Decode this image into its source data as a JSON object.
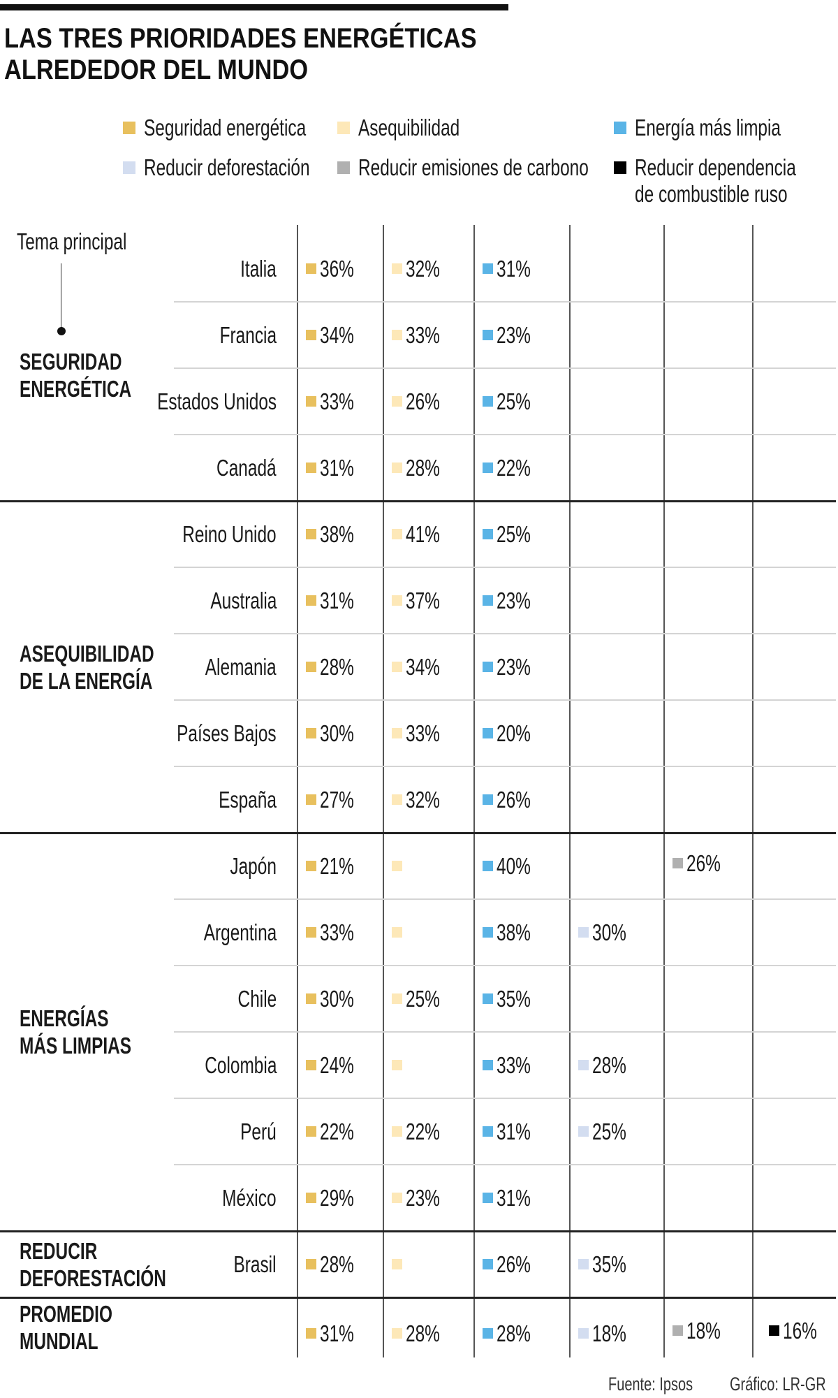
{
  "title": {
    "line1": "LAS TRES PRIORIDADES ENERGÉTICAS",
    "line2": "ALREDEDOR DEL MUNDO"
  },
  "legend": [
    {
      "label": "Seguridad energética",
      "color": "#e8c05e"
    },
    {
      "label": "Asequibilidad",
      "color": "#fde8b8"
    },
    {
      "label": "Energía más limpia",
      "color": "#5ab4e6"
    },
    {
      "label": "Reducir deforestación",
      "color": "#d3ddf0"
    },
    {
      "label": "Reducir emisiones de carbono",
      "color": "#b0b0b0"
    },
    {
      "label": "Reducir dependencia",
      "label2": "de combustible ruso",
      "color": "#000000"
    }
  ],
  "tema_label": "Tema principal",
  "chart_data": {
    "type": "table",
    "columns": [
      "Seguridad energética",
      "Asequibilidad",
      "Energía más limpia",
      "Reducir deforestación",
      "Reducir emisiones de carbono",
      "Reducir dependencia de combustible ruso"
    ],
    "groups": [
      {
        "line1": "SEGURIDAD",
        "line2": "ENERGÉTICA",
        "rows": [
          0,
          3
        ]
      },
      {
        "line1": "ASEQUIBILIDAD",
        "line2": "DE LA ENERGÍA",
        "rows": [
          4,
          8
        ]
      },
      {
        "line1": "ENERGÍAS",
        "line2": "MÁS LIMPIAS",
        "rows": [
          9,
          14
        ]
      },
      {
        "line1": "REDUCIR",
        "line2": "DEFORESTACIÓN",
        "rows": [
          15,
          15
        ]
      },
      {
        "line1": "PROMEDIO",
        "line2": "MUNDIAL",
        "rows": [
          16,
          16
        ]
      }
    ],
    "rows": [
      {
        "country": "Italia",
        "values": [
          "36%",
          "32%",
          "31%",
          null,
          null,
          null
        ]
      },
      {
        "country": "Francia",
        "values": [
          "34%",
          "33%",
          "23%",
          null,
          null,
          null
        ]
      },
      {
        "country": "Estados Unidos",
        "values": [
          "33%",
          "26%",
          "25%",
          null,
          null,
          null
        ]
      },
      {
        "country": "Canadá",
        "values": [
          "31%",
          "28%",
          "22%",
          null,
          null,
          null
        ]
      },
      {
        "country": "Reino Unido",
        "values": [
          "38%",
          "41%",
          "25%",
          null,
          null,
          null
        ]
      },
      {
        "country": "Australia",
        "values": [
          "31%",
          "37%",
          "23%",
          null,
          null,
          null
        ]
      },
      {
        "country": "Alemania",
        "values": [
          "28%",
          "34%",
          "23%",
          null,
          null,
          null
        ]
      },
      {
        "country": "Países Bajos",
        "values": [
          "30%",
          "33%",
          "20%",
          null,
          null,
          null
        ]
      },
      {
        "country": "España",
        "values": [
          "27%",
          "32%",
          "26%",
          null,
          null,
          null
        ]
      },
      {
        "country": "Japón",
        "values": [
          "21%",
          "",
          "40%",
          null,
          "26%",
          null
        ]
      },
      {
        "country": "Argentina",
        "values": [
          "33%",
          "",
          "38%",
          "30%",
          null,
          null
        ]
      },
      {
        "country": "Chile",
        "values": [
          "30%",
          "25%",
          "35%",
          null,
          null,
          null
        ]
      },
      {
        "country": "Colombia",
        "values": [
          "24%",
          "",
          "33%",
          "28%",
          null,
          null
        ]
      },
      {
        "country": "Perú",
        "values": [
          "22%",
          "22%",
          "31%",
          "25%",
          null,
          null
        ]
      },
      {
        "country": "México",
        "values": [
          "29%",
          "23%",
          "31%",
          null,
          null,
          null
        ]
      },
      {
        "country": "Brasil",
        "values": [
          "28%",
          "",
          "26%",
          "35%",
          null,
          null
        ]
      },
      {
        "country": "",
        "values": [
          "31%",
          "28%",
          "28%",
          "18%",
          "18%",
          "16%"
        ]
      }
    ]
  },
  "footer": {
    "source": "Fuente: Ipsos",
    "credit": "Gráfico: LR-GR"
  }
}
